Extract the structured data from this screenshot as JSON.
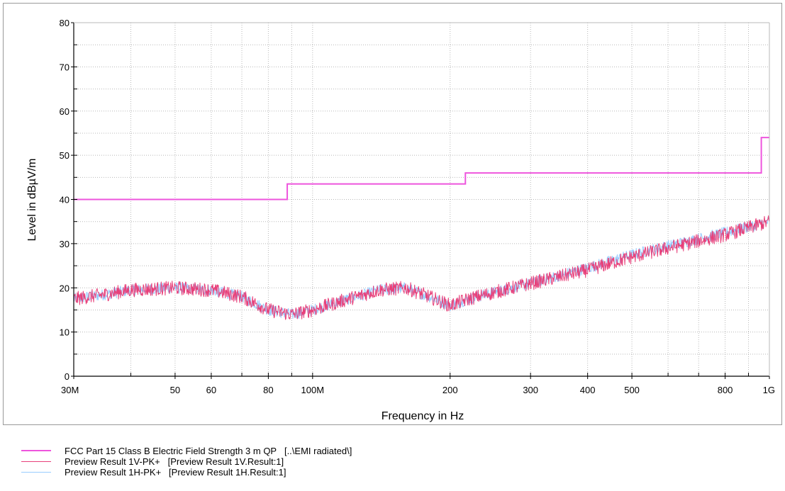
{
  "chart_data": {
    "type": "line",
    "xlabel": "Frequency in Hz",
    "ylabel": "Level in dBµV/m",
    "x_scale": "log",
    "xlim": [
      30000000,
      1000000000
    ],
    "ylim": [
      0,
      80
    ],
    "grid": true,
    "x_ticks": [
      {
        "value": 30000000,
        "label": "30M"
      },
      {
        "value": 50000000,
        "label": "50"
      },
      {
        "value": 60000000,
        "label": "60"
      },
      {
        "value": 80000000,
        "label": "80"
      },
      {
        "value": 100000000,
        "label": "100M"
      },
      {
        "value": 200000000,
        "label": "200"
      },
      {
        "value": 300000000,
        "label": "300"
      },
      {
        "value": 400000000,
        "label": "400"
      },
      {
        "value": 500000000,
        "label": "500"
      },
      {
        "value": 800000000,
        "label": "800"
      },
      {
        "value": 1000000000,
        "label": "1G"
      }
    ],
    "y_ticks": [
      {
        "value": 0,
        "label": "0"
      },
      {
        "value": 10,
        "label": "10"
      },
      {
        "value": 20,
        "label": "20"
      },
      {
        "value": 30,
        "label": "30"
      },
      {
        "value": 40,
        "label": "40"
      },
      {
        "value": 50,
        "label": "50"
      },
      {
        "value": 60,
        "label": "60"
      },
      {
        "value": 70,
        "label": "70"
      },
      {
        "value": 80,
        "label": "80"
      }
    ],
    "legend_position": "bottom",
    "series": [
      {
        "name": "FCC Part 15 Class B Electric Field Strength 3 m QP",
        "legend_detail": "[..\\EMI radiated\\]",
        "color": "#ee55dd",
        "x": [
          30000000,
          88000000,
          88000000,
          216000000,
          216000000,
          960000000,
          960000000,
          1000000000
        ],
        "y": [
          40,
          40,
          43.5,
          43.5,
          46,
          46,
          54,
          54
        ]
      },
      {
        "name": "Preview Result 1V-PK+",
        "legend_detail": "[Preview Result 1V.Result:1]",
        "color": "#e8407a",
        "x": [
          30000000,
          35000000,
          40000000,
          50000000,
          60000000,
          70000000,
          80000000,
          90000000,
          100000000,
          120000000,
          140000000,
          160000000,
          180000000,
          200000000,
          220000000,
          250000000,
          300000000,
          400000000,
          500000000,
          600000000,
          800000000,
          1000000000
        ],
        "y": [
          17.5,
          18.5,
          19.5,
          20,
          19.5,
          18,
          15,
          14,
          15,
          17.5,
          19.5,
          20,
          18,
          16,
          17.5,
          19,
          21,
          24,
          27,
          29,
          32,
          35
        ]
      },
      {
        "name": "Preview Result 1H-PK+",
        "legend_detail": "[Preview Result 1H.Result:1]",
        "color": "#99ccff",
        "x": [
          30000000,
          35000000,
          40000000,
          50000000,
          60000000,
          70000000,
          80000000,
          90000000,
          100000000,
          120000000,
          140000000,
          160000000,
          180000000,
          200000000,
          220000000,
          250000000,
          300000000,
          400000000,
          500000000,
          600000000,
          800000000,
          1000000000
        ],
        "y": [
          17.5,
          18.5,
          19.5,
          20,
          19.5,
          18,
          15,
          14,
          15,
          17.5,
          19.5,
          20,
          18,
          16,
          17.5,
          19,
          21,
          24.5,
          27.5,
          29.5,
          32.5,
          35
        ]
      }
    ]
  }
}
